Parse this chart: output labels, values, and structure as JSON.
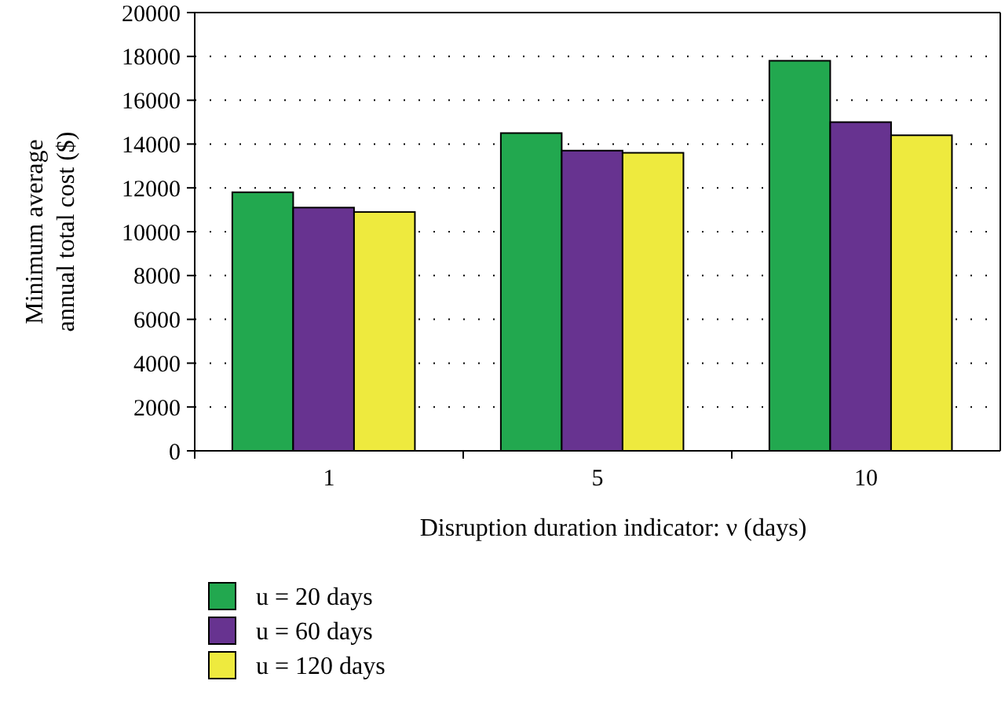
{
  "chart_data": {
    "type": "bar",
    "xlabel": "Disruption duration indicator: ν (days)",
    "ylabel": "Minimum average annual total cost ($)",
    "categories": [
      "1",
      "5",
      "10"
    ],
    "series": [
      {
        "name": "u = 20 days",
        "color": "#22a84f",
        "values": [
          11800,
          14500,
          17800
        ]
      },
      {
        "name": "u = 60 days",
        "color": "#673390",
        "values": [
          11100,
          13700,
          15000
        ]
      },
      {
        "name": "u = 120 days",
        "color": "#eeea3e",
        "values": [
          10900,
          13600,
          14400
        ]
      }
    ],
    "ylim": [
      0,
      20000
    ],
    "yticks": [
      0,
      2000,
      4000,
      6000,
      8000,
      10000,
      12000,
      14000,
      16000,
      18000,
      20000
    ],
    "grid": "y",
    "legend": "bottom left"
  }
}
